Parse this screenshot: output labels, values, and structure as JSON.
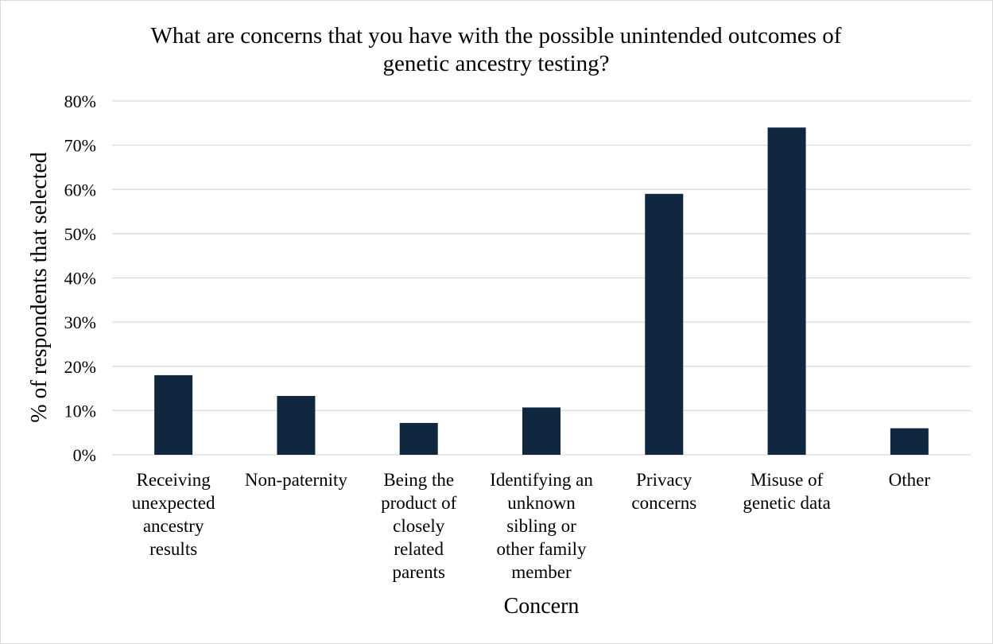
{
  "chart_data": {
    "type": "bar",
    "title": "What are concerns that you have with the possible unintended outcomes of genetic ancestry testing?",
    "title_lines": [
      "What are concerns that you have with the possible unintended outcomes of",
      "genetic ancestry testing?"
    ],
    "xlabel": "Concern",
    "ylabel": "% of respondents that selected",
    "ylim": [
      0,
      0.8
    ],
    "yticks": [
      0,
      0.1,
      0.2,
      0.3,
      0.4,
      0.5,
      0.6,
      0.7,
      0.8
    ],
    "ytick_labels": [
      "0%",
      "10%",
      "20%",
      "30%",
      "40%",
      "50%",
      "60%",
      "70%",
      "80%"
    ],
    "grid": true,
    "legend": "none",
    "bar_color": "#10273f",
    "gridline_color": "#d9d9d9",
    "categories": [
      "Receiving unexpected ancestry results",
      "Non-paternity",
      "Being the product of closely related parents",
      "Identifying an unknown sibling or other family member",
      "Privacy concerns",
      "Misuse of genetic data",
      "Other"
    ],
    "category_label_lines": [
      [
        "Receiving",
        "unexpected",
        "ancestry",
        "results"
      ],
      [
        "Non-paternity"
      ],
      [
        "Being the",
        "product of",
        "closely",
        "related",
        "parents"
      ],
      [
        "Identifying an",
        "unknown",
        "sibling or",
        "other family",
        "member"
      ],
      [
        "Privacy",
        "concerns"
      ],
      [
        "Misuse of",
        "genetic data"
      ],
      [
        "Other"
      ]
    ],
    "values": [
      0.18,
      0.133,
      0.072,
      0.107,
      0.59,
      0.74,
      0.06
    ]
  }
}
